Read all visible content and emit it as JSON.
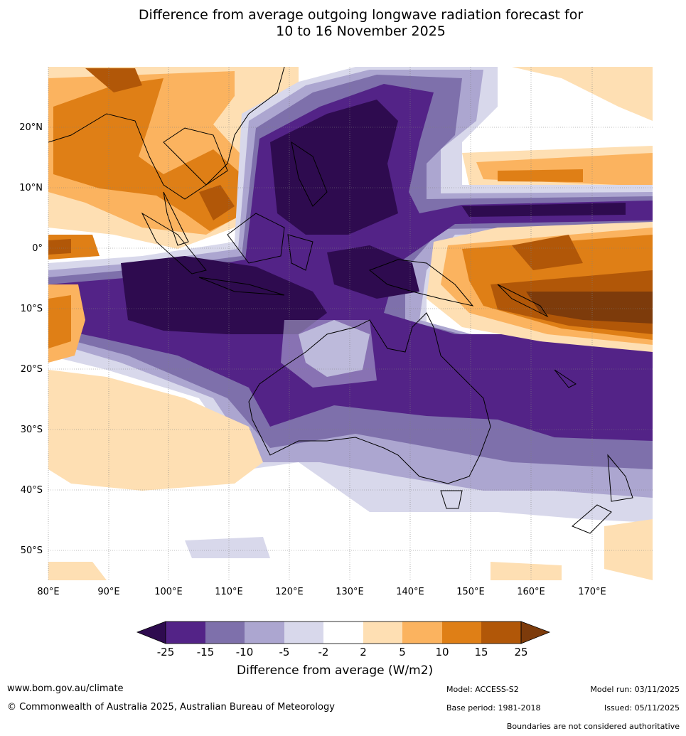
{
  "title": {
    "line1": "Difference from average outgoing longwave radiation forecast for",
    "line2": "10 to 16 November 2025"
  },
  "map": {
    "lon_labels": [
      "80°E",
      "90°E",
      "100°E",
      "110°E",
      "120°E",
      "130°E",
      "140°E",
      "150°E",
      "160°E",
      "170°E"
    ],
    "lat_labels": [
      "20°N",
      "10°N",
      "0°",
      "10°S",
      "20°S",
      "30°S",
      "40°S",
      "50°S"
    ]
  },
  "colorbar": {
    "ticks": [
      "-25",
      "-15",
      "-10",
      "-5",
      "-2",
      "2",
      "5",
      "10",
      "15",
      "25"
    ],
    "colors": [
      "#2e0b4f",
      "#532387",
      "#7e70ab",
      "#aca6d0",
      "#d8d8eb",
      "#ffffff",
      "#fedfb3",
      "#fbb35f",
      "#df7f16",
      "#b15708",
      "#7d3b0b"
    ],
    "label": "Difference from average (W/m2)"
  },
  "footer": {
    "website": "www.bom.gov.au/climate",
    "copyright": "© Commonwealth of Australia 2025, Australian Bureau of Meteorology",
    "model": "Model: ACCESS-S2",
    "model_run": "Model run: 03/11/2025",
    "base_period": "Base period: 1981-2018",
    "issued": "Issued: 05/11/2025",
    "disclaimer": "Boundaries are not considered authoritative"
  }
}
